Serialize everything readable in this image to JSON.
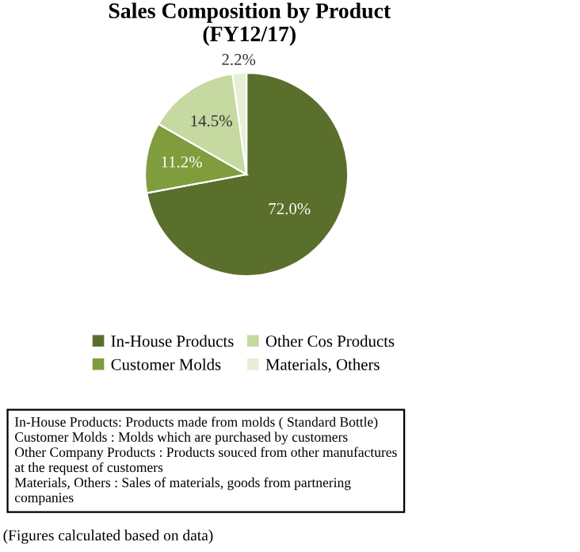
{
  "chart_data": {
    "type": "pie",
    "title": "Sales Composition by Product\n(FY12/17)",
    "categories": [
      "In-House Products",
      "Customer Molds",
      "Other Cos Products",
      "Materials, Others"
    ],
    "values": [
      72.0,
      11.2,
      14.5,
      2.2
    ],
    "value_labels": [
      "72.0%",
      "11.2%",
      "14.5%",
      "2.2%"
    ],
    "colors": [
      "#5b6f2c",
      "#7f9d3c",
      "#c5d9a0",
      "#e6eed4"
    ],
    "legend": "bottom",
    "annotations": [
      "In-House Products: Products made from molds ( Standard Bottle)\nCustomer Molds : Molds which are purchased by customers\nOther Company Products : Products souced from other manufactures\nat the request of customers\nMaterials, Others : Sales of materials, goods from partnering\ncompanies",
      "(Figures calculated based on data)"
    ]
  }
}
